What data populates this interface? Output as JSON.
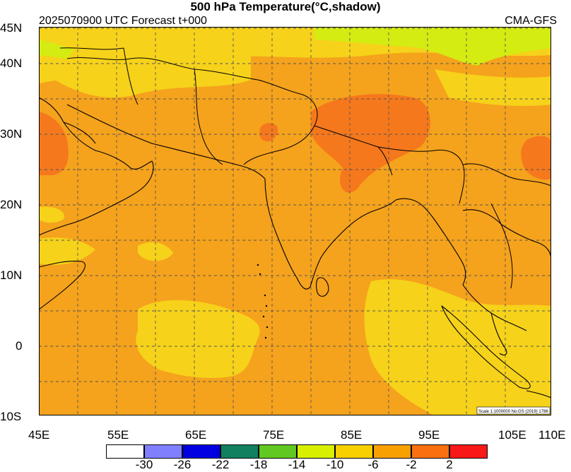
{
  "title": "500 hPa Temperature(°C,shadow)",
  "subtitle_left": "2025070900 UTC Forecast t+000",
  "subtitle_right": "CMA-GFS",
  "scale_note": "Scale 1:1000000 No:GS (2019) 1786",
  "lat_labels": [
    "45N",
    "40N",
    "30N",
    "20N",
    "10N",
    "0",
    "10S"
  ],
  "lon_labels": [
    "45E",
    "55E",
    "65E",
    "75E",
    "85E",
    "95E",
    "105E",
    "110E"
  ],
  "colorbar": {
    "colors": [
      "#ffffff",
      "#8080ff",
      "#0000e0",
      "#108060",
      "#60c820",
      "#d8f000",
      "#f8d000",
      "#f8a000",
      "#f87010",
      "#f81818"
    ],
    "labels": [
      "-30",
      "-26",
      "-22",
      "-18",
      "-14",
      "-10",
      "-6",
      "-2",
      "2"
    ]
  },
  "colors": {
    "warm_orange": "#f5a21c",
    "cool_yellow": "#f6d21a",
    "hot_orange": "#f5781c",
    "lime": "#d4ec12",
    "grid": "#555555"
  }
}
